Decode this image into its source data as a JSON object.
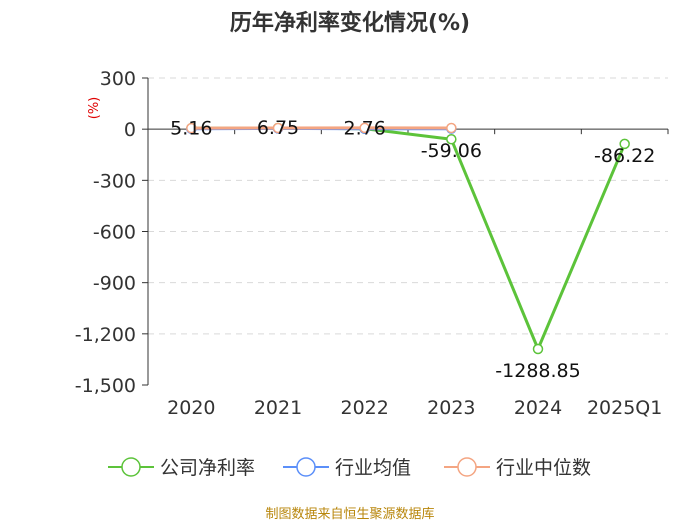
{
  "chart_data": {
    "type": "line",
    "title": "历年净利率变化情况(%)",
    "ylabel": "(%)",
    "xlabel": "",
    "categories": [
      "2020",
      "2021",
      "2022",
      "2023",
      "2024",
      "2025Q1"
    ],
    "ylim": [
      -1500,
      300
    ],
    "yticks": [
      300,
      0,
      -300,
      -600,
      -900,
      -1200,
      -1500
    ],
    "ytick_labels": [
      "300",
      "0",
      "-300",
      "-600",
      "-900",
      "-1,200",
      "-1,500"
    ],
    "grid": true,
    "legend_position": "bottom",
    "series": [
      {
        "name": "公司净利率",
        "color": "#5cc33a",
        "values": [
          5.16,
          6.75,
          2.76,
          -59.06,
          -1288.85,
          -86.22
        ],
        "labels": [
          "5.16",
          "6.75",
          "2.76",
          "-59.06",
          "-1288.85",
          "-86.22"
        ]
      },
      {
        "name": "行业均值",
        "color": "#5b8ff9",
        "values": [
          2.0,
          4.5,
          2.5,
          3.0,
          null,
          null
        ]
      },
      {
        "name": "行业中位数",
        "color": "#f4a582",
        "values": [
          6.0,
          7.0,
          7.5,
          7.0,
          null,
          null
        ]
      }
    ]
  },
  "source": "制图数据来自恒生聚源数据库"
}
